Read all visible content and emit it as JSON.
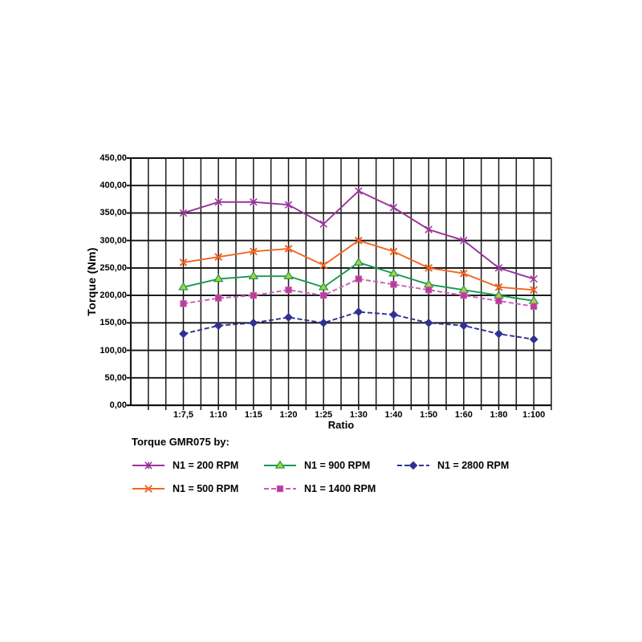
{
  "page": {
    "background": "#ffffff"
  },
  "chart_data": {
    "type": "line",
    "title": "",
    "xlabel": "Ratio",
    "ylabel": "Torque (Nm)",
    "categories": [
      "1:7,5",
      "1:10",
      "1:15",
      "1:20",
      "1:25",
      "1:30",
      "1:40",
      "1:50",
      "1:60",
      "1:80",
      "1:100"
    ],
    "y_tick_labels": [
      "0,00",
      "50,00",
      "100,00",
      "150,00",
      "200,00",
      "250,00",
      "300,00",
      "350,00",
      "400,00",
      "450,00"
    ],
    "ylim": [
      0,
      450
    ],
    "y_step": 50,
    "grid": "both",
    "grid_color": "#1a1a1a",
    "legend_title": "Torque GMR075 by:",
    "legend_position": "bottom-left",
    "series": [
      {
        "name": "N1 = 200 RPM",
        "color": "#993399",
        "marker": "star",
        "marker_fill": "#993399",
        "line_style": "solid",
        "values": [
          350,
          370,
          370,
          365,
          330,
          390,
          360,
          320,
          300,
          250,
          230
        ]
      },
      {
        "name": "N1 = 500 RPM",
        "color": "#F26522",
        "marker": "x",
        "marker_fill": "#F26522",
        "line_style": "solid",
        "values": [
          260,
          270,
          280,
          285,
          255,
          300,
          280,
          250,
          240,
          215,
          210
        ]
      },
      {
        "name": "N1 = 900 RPM",
        "color": "#169A50",
        "marker": "triangle",
        "marker_fill": "#AFD136",
        "line_style": "solid",
        "values": [
          215,
          230,
          235,
          235,
          215,
          260,
          240,
          220,
          210,
          200,
          190
        ]
      },
      {
        "name": "N1 = 1400 RPM",
        "color": "#C75FB4",
        "marker": "square",
        "marker_fill": "#BE3A9A",
        "line_style": "dashed",
        "values": [
          185,
          195,
          200,
          210,
          200,
          230,
          220,
          210,
          200,
          190,
          180
        ]
      },
      {
        "name": "N1 = 2800 RPM",
        "color": "#313193",
        "marker": "diamond",
        "marker_fill": "#313193",
        "line_style": "dashed",
        "values": [
          130,
          145,
          150,
          160,
          150,
          170,
          165,
          150,
          145,
          130,
          120
        ]
      }
    ]
  }
}
